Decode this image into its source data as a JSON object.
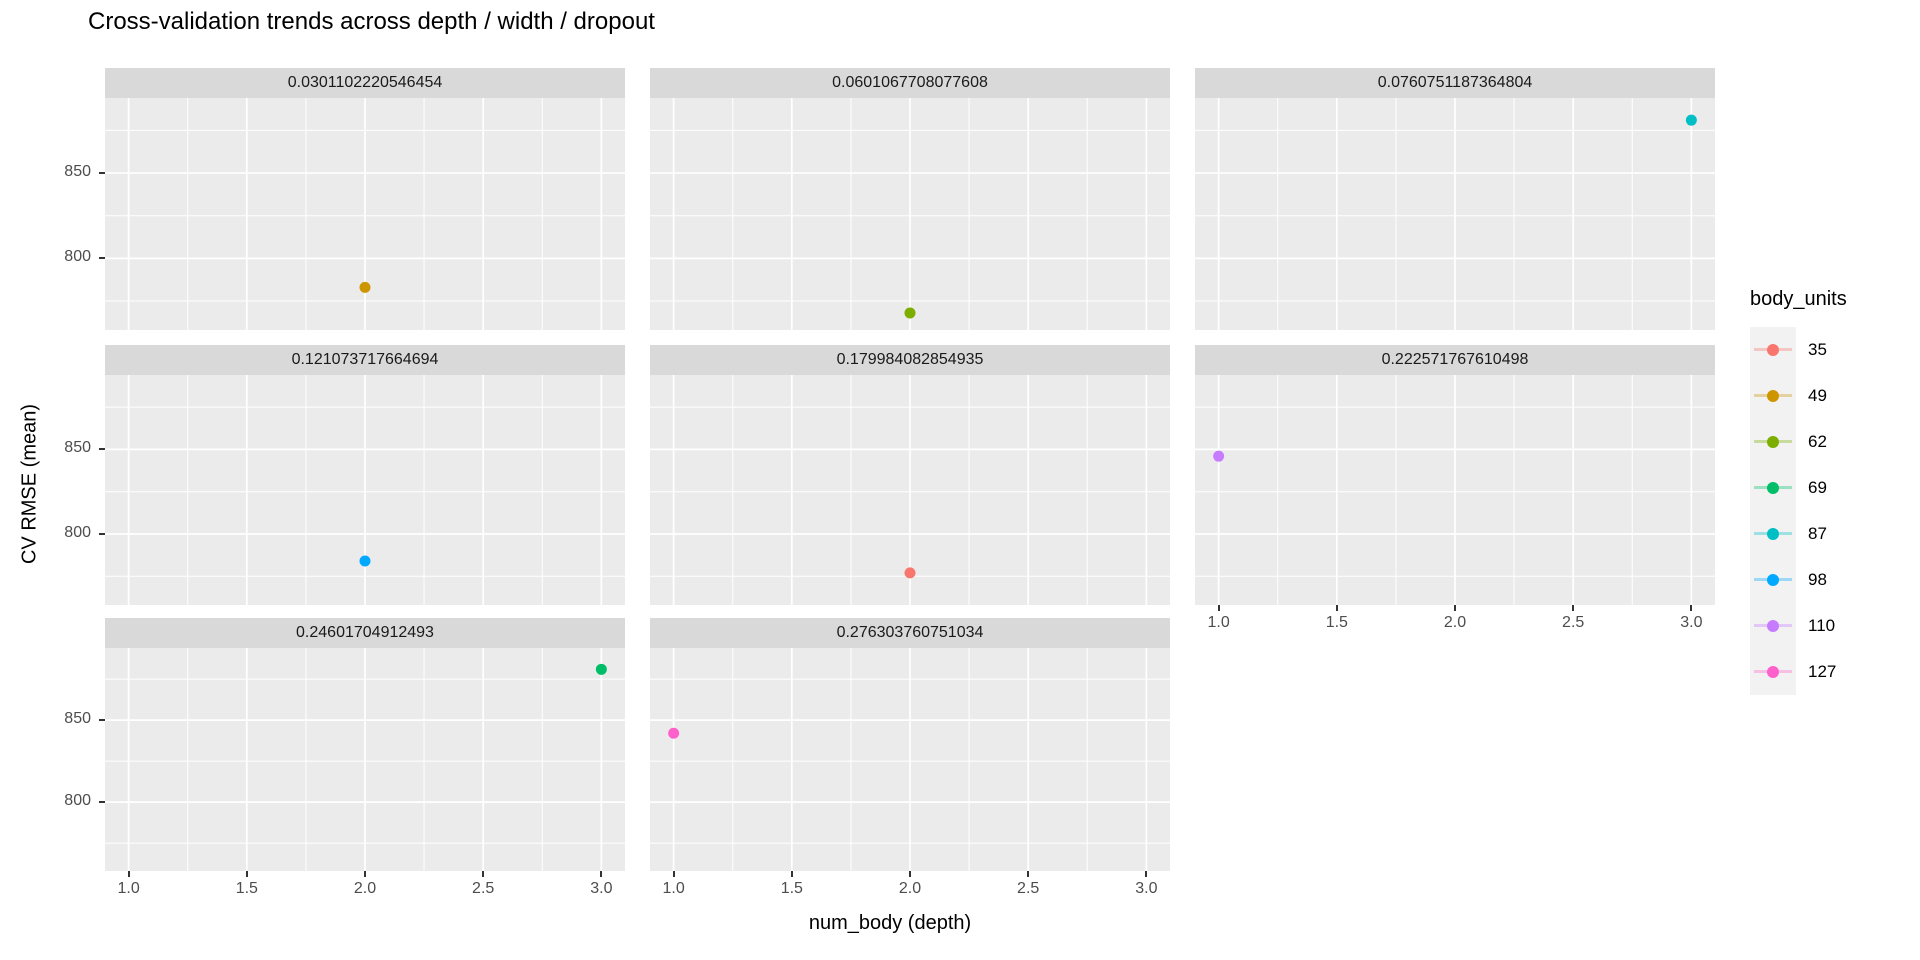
{
  "chart_data": {
    "type": "scatter",
    "title": "Cross-validation trends across depth / width / dropout",
    "xlabel": "num_body (depth)",
    "ylabel": "CV RMSE (mean)",
    "facet_variable": "dropout",
    "grid": true,
    "panel_bg": "#EBEBEB",
    "strip_bg": "#D9D9D9",
    "grid_color": "#FFFFFF",
    "tick_color": "#333333",
    "tick_label_color": "#4D4D4D",
    "x_ticks": [
      1.0,
      1.5,
      2.0,
      2.5,
      3.0
    ],
    "x_minor_ticks": [
      1.25,
      1.75,
      2.25,
      2.75
    ],
    "y_ticks": [
      850,
      800
    ],
    "y_minor_ticks": [
      875,
      825,
      775
    ],
    "x_range": [
      0.9,
      3.1
    ],
    "y_range": [
      758,
      894
    ],
    "facets": [
      {
        "label": "0.0301102220546454",
        "points": [
          {
            "x": 2.0,
            "y": 783,
            "body_units": "49"
          }
        ]
      },
      {
        "label": "0.0601067708077608",
        "points": [
          {
            "x": 2.0,
            "y": 768,
            "body_units": "62"
          }
        ]
      },
      {
        "label": "0.0760751187364804",
        "points": [
          {
            "x": 3.0,
            "y": 881,
            "body_units": "87"
          }
        ]
      },
      {
        "label": "0.121073717664694",
        "points": [
          {
            "x": 2.0,
            "y": 784,
            "body_units": "98"
          }
        ]
      },
      {
        "label": "0.179984082854935",
        "points": [
          {
            "x": 2.0,
            "y": 777,
            "body_units": "35"
          }
        ]
      },
      {
        "label": "0.222571767610498",
        "points": [
          {
            "x": 1.0,
            "y": 846,
            "body_units": "110"
          }
        ]
      },
      {
        "label": "0.24601704912493",
        "points": [
          {
            "x": 3.0,
            "y": 881,
            "body_units": "69"
          }
        ]
      },
      {
        "label": "0.276303760751034",
        "points": [
          {
            "x": 1.0,
            "y": 842,
            "body_units": "127"
          }
        ]
      }
    ],
    "legend": {
      "title": "body_units",
      "position": "right",
      "key_bg": "#F2F2F2",
      "entries": [
        {
          "label": "35",
          "color": "#F8766D"
        },
        {
          "label": "49",
          "color": "#CD9600"
        },
        {
          "label": "62",
          "color": "#7CAE00"
        },
        {
          "label": "69",
          "color": "#00BE67"
        },
        {
          "label": "87",
          "color": "#00BFC4"
        },
        {
          "label": "98",
          "color": "#00A9FF"
        },
        {
          "label": "110",
          "color": "#C77CFF"
        },
        {
          "label": "127",
          "color": "#FF61CC"
        }
      ]
    }
  }
}
